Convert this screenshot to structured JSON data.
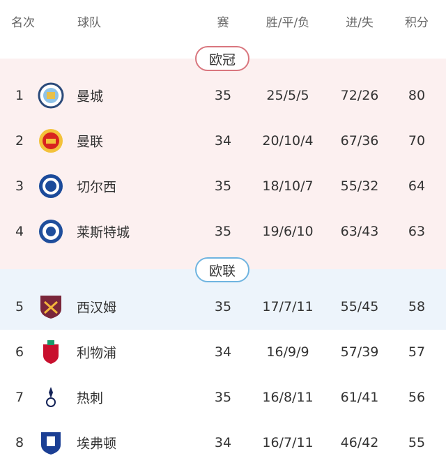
{
  "headers": {
    "rank": "名次",
    "team": "球队",
    "played": "赛",
    "wdl": "胜/平/负",
    "goals": "进/失",
    "points": "积分"
  },
  "zones": [
    {
      "label": "欧冠",
      "color": "#d9767e",
      "bg": "#fcf0f0"
    },
    {
      "label": "欧联",
      "color": "#6fb4e0",
      "bg": "#edf4fb"
    }
  ],
  "rows": [
    {
      "rank": "1",
      "team": "曼城",
      "played": "35",
      "wdl": "25/5/5",
      "goals": "72/26",
      "points": "80",
      "crest": "manchester-city-crest"
    },
    {
      "rank": "2",
      "team": "曼联",
      "played": "34",
      "wdl": "20/10/4",
      "goals": "67/36",
      "points": "70",
      "crest": "manchester-united-crest"
    },
    {
      "rank": "3",
      "team": "切尔西",
      "played": "35",
      "wdl": "18/10/7",
      "goals": "55/32",
      "points": "64",
      "crest": "chelsea-crest"
    },
    {
      "rank": "4",
      "team": "莱斯特城",
      "played": "35",
      "wdl": "19/6/10",
      "goals": "63/43",
      "points": "63",
      "crest": "leicester-crest"
    },
    {
      "rank": "5",
      "team": "西汉姆",
      "played": "35",
      "wdl": "17/7/11",
      "goals": "55/45",
      "points": "58",
      "crest": "west-ham-crest"
    },
    {
      "rank": "6",
      "team": "利物浦",
      "played": "34",
      "wdl": "16/9/9",
      "goals": "57/39",
      "points": "57",
      "crest": "liverpool-crest"
    },
    {
      "rank": "7",
      "team": "热刺",
      "played": "35",
      "wdl": "16/8/11",
      "goals": "61/41",
      "points": "56",
      "crest": "tottenham-crest"
    },
    {
      "rank": "8",
      "team": "埃弗顿",
      "played": "34",
      "wdl": "16/7/11",
      "goals": "46/42",
      "points": "55",
      "crest": "everton-crest"
    }
  ]
}
